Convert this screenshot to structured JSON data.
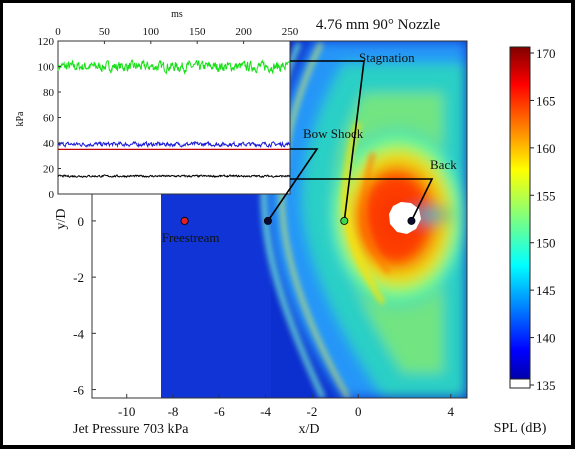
{
  "chart_data": [
    {
      "type": "heatmap",
      "title": "4.76 mm 90° Nozzle",
      "xlabel": "x/D",
      "ylabel": "y/D",
      "xlim": [
        -11.5,
        4.7
      ],
      "ylim": [
        -6.3,
        6.4
      ],
      "x_ticks": [
        "-10",
        "-8",
        "-6",
        "-4",
        "-2",
        "0",
        "4"
      ],
      "x_tick_values": [
        -10,
        -8,
        -6,
        -4,
        -2,
        0,
        4
      ],
      "y_ticks": [
        "0",
        "-2",
        "-4",
        "-6"
      ],
      "y_tick_values": [
        0,
        -2,
        -4,
        -6
      ],
      "grid": false,
      "footer_left": "Jet Pressure 703 kPa",
      "colorbar": {
        "label": "SPL (dB)",
        "range": [
          135,
          170
        ],
        "ticks": [
          "170",
          "165",
          "160",
          "155",
          "150",
          "145",
          "140",
          "135"
        ],
        "tick_values": [
          170,
          165,
          160,
          155,
          150,
          145,
          140,
          135
        ],
        "colormap": "jet"
      },
      "sensor_points": [
        {
          "name": "Freestream",
          "x": -7.5,
          "y": 0,
          "color": "#e02020"
        },
        {
          "name": "Bow Shock",
          "x": -3.9,
          "y": 0,
          "color": "#0b0b30"
        },
        {
          "name": "Stagnation",
          "x": -0.6,
          "y": 0,
          "color": "#3cd850"
        },
        {
          "name": "Back",
          "x": 2.3,
          "y": 0,
          "color": "#0b0b30"
        }
      ]
    },
    {
      "type": "line",
      "xlabel": "ms",
      "ylabel": "kPa",
      "xlim": [
        0,
        250
      ],
      "ylim": [
        0,
        120
      ],
      "x_ticks": [
        "0",
        "50",
        "100",
        "150",
        "200",
        "250"
      ],
      "x_tick_values": [
        0,
        50,
        100,
        150,
        200,
        250
      ],
      "y_ticks": [
        "120",
        "100",
        "80",
        "60",
        "40",
        "20",
        "0"
      ],
      "y_tick_values": [
        120,
        100,
        80,
        60,
        40,
        20,
        0
      ],
      "series": [
        {
          "mean": 100,
          "noise": 6,
          "color": "#18e018"
        },
        {
          "mean": 39,
          "noise": 2.5,
          "color": "#1a1ad8"
        },
        {
          "mean": 35,
          "noise": 0,
          "color": "#c00000"
        },
        {
          "mean": 14,
          "noise": 1.2,
          "color": "#000000"
        }
      ]
    }
  ],
  "colors": {
    "map_background": "#0c2fd0",
    "frame": "#000000"
  }
}
